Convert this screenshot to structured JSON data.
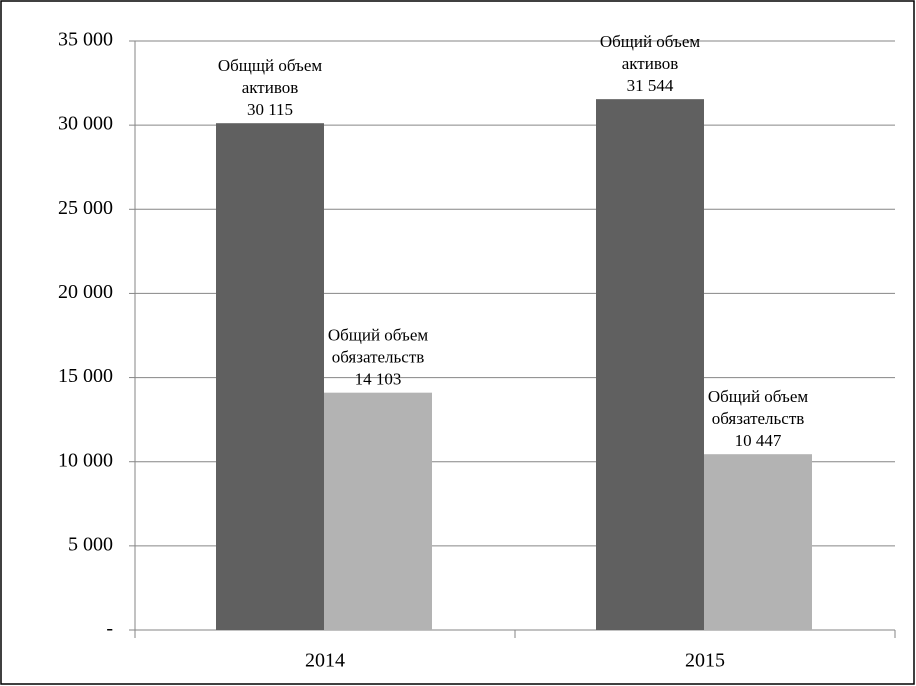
{
  "chart_data": {
    "type": "bar",
    "categories": [
      "2014",
      "2015"
    ],
    "series": [
      {
        "name": "Общий объем активов",
        "color": "#606060",
        "values": [
          30115,
          31544
        ],
        "data_label_names": [
          "Общщй объем активов",
          "Общий объем активов"
        ],
        "value_labels": [
          "30 115",
          "31 544"
        ]
      },
      {
        "name": "Общий объем обязательств",
        "color": "#b3b3b3",
        "values": [
          14103,
          10447
        ],
        "data_label_names": [
          "Общий объем обязательств",
          "Общий объем обязательств"
        ],
        "value_labels": [
          "14 103",
          "10 447"
        ]
      }
    ],
    "ylim": [
      0,
      35000
    ],
    "yticks": [
      {
        "value": 0,
        "label": "-"
      },
      {
        "value": 5000,
        "label": "5 000"
      },
      {
        "value": 10000,
        "label": "10 000"
      },
      {
        "value": 15000,
        "label": "15 000"
      },
      {
        "value": 20000,
        "label": "20 000"
      },
      {
        "value": 25000,
        "label": "25 000"
      },
      {
        "value": 30000,
        "label": "30 000"
      },
      {
        "value": 35000,
        "label": "35 000"
      }
    ],
    "grid": true
  }
}
